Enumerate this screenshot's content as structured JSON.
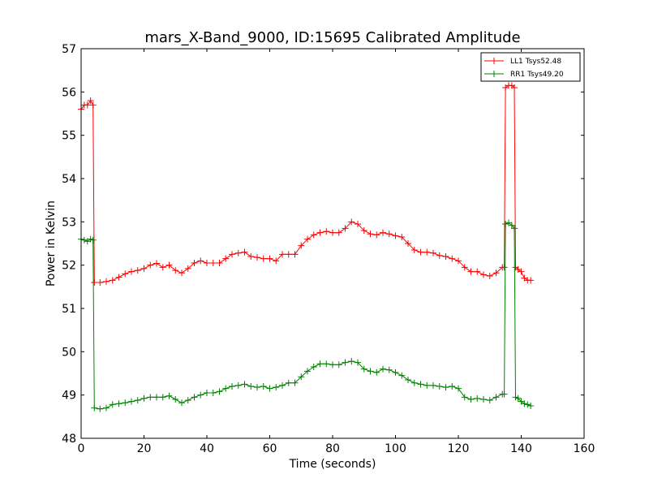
{
  "chart_data": {
    "type": "line",
    "title": "mars_X-Band_9000, ID:15695 Calibrated Amplitude",
    "xlabel": "Time (seconds)",
    "ylabel": "Power in Kelvin",
    "xlim": [
      0,
      160
    ],
    "ylim": [
      48,
      57
    ],
    "xticks": [
      0,
      20,
      40,
      60,
      80,
      100,
      120,
      140,
      160
    ],
    "yticks": [
      48,
      49,
      50,
      51,
      52,
      53,
      54,
      55,
      56,
      57
    ],
    "grid": false,
    "legend_position": "top-right",
    "marker": "plus",
    "series": [
      {
        "name": "LL1 Tsys52.48",
        "color": "#ff0000",
        "points": [
          [
            0.0,
            55.6
          ],
          [
            1.0,
            55.7
          ],
          [
            2.0,
            55.7
          ],
          [
            3.0,
            55.8
          ],
          [
            3.8,
            55.7
          ],
          [
            4.2,
            51.6
          ],
          [
            6,
            51.6
          ],
          [
            8,
            51.62
          ],
          [
            10,
            51.65
          ],
          [
            12,
            51.72
          ],
          [
            14,
            51.8
          ],
          [
            16,
            51.85
          ],
          [
            18,
            51.88
          ],
          [
            20,
            51.92
          ],
          [
            22,
            52.0
          ],
          [
            24,
            52.04
          ],
          [
            26,
            51.95
          ],
          [
            28,
            52.0
          ],
          [
            30,
            51.88
          ],
          [
            32,
            51.82
          ],
          [
            34,
            51.92
          ],
          [
            36,
            52.05
          ],
          [
            38,
            52.1
          ],
          [
            40,
            52.05
          ],
          [
            42,
            52.05
          ],
          [
            44,
            52.05
          ],
          [
            46,
            52.15
          ],
          [
            48,
            52.25
          ],
          [
            50,
            52.28
          ],
          [
            52,
            52.3
          ],
          [
            54,
            52.2
          ],
          [
            56,
            52.18
          ],
          [
            58,
            52.15
          ],
          [
            60,
            52.15
          ],
          [
            62,
            52.1
          ],
          [
            64,
            52.25
          ],
          [
            66,
            52.25
          ],
          [
            68,
            52.25
          ],
          [
            70,
            52.45
          ],
          [
            72,
            52.6
          ],
          [
            74,
            52.7
          ],
          [
            76,
            52.75
          ],
          [
            78,
            52.78
          ],
          [
            80,
            52.75
          ],
          [
            82,
            52.75
          ],
          [
            84,
            52.85
          ],
          [
            86,
            53.0
          ],
          [
            88,
            52.95
          ],
          [
            90,
            52.8
          ],
          [
            92,
            52.72
          ],
          [
            94,
            52.7
          ],
          [
            96,
            52.75
          ],
          [
            98,
            52.72
          ],
          [
            100,
            52.68
          ],
          [
            102,
            52.65
          ],
          [
            104,
            52.5
          ],
          [
            106,
            52.35
          ],
          [
            108,
            52.3
          ],
          [
            110,
            52.3
          ],
          [
            112,
            52.28
          ],
          [
            114,
            52.22
          ],
          [
            116,
            52.2
          ],
          [
            118,
            52.15
          ],
          [
            120,
            52.1
          ],
          [
            122,
            51.95
          ],
          [
            124,
            51.85
          ],
          [
            126,
            51.85
          ],
          [
            128,
            51.78
          ],
          [
            130,
            51.75
          ],
          [
            132,
            51.82
          ],
          [
            134,
            51.95
          ],
          [
            134.6,
            51.95
          ],
          [
            135.0,
            56.1
          ],
          [
            136,
            56.15
          ],
          [
            137,
            56.15
          ],
          [
            137.8,
            56.1
          ],
          [
            138.2,
            51.95
          ],
          [
            139,
            51.9
          ],
          [
            140,
            51.85
          ],
          [
            141,
            51.7
          ],
          [
            142,
            51.65
          ],
          [
            143,
            51.65
          ]
        ]
      },
      {
        "name": "RR1 Tsys49.20",
        "color": "#008000",
        "points": [
          [
            0.0,
            52.6
          ],
          [
            1.0,
            52.58
          ],
          [
            2.0,
            52.55
          ],
          [
            3.0,
            52.6
          ],
          [
            3.8,
            52.58
          ],
          [
            4.2,
            48.7
          ],
          [
            6,
            48.68
          ],
          [
            8,
            48.7
          ],
          [
            10,
            48.78
          ],
          [
            12,
            48.8
          ],
          [
            14,
            48.82
          ],
          [
            16,
            48.85
          ],
          [
            18,
            48.88
          ],
          [
            20,
            48.92
          ],
          [
            22,
            48.95
          ],
          [
            24,
            48.95
          ],
          [
            26,
            48.95
          ],
          [
            28,
            48.98
          ],
          [
            30,
            48.9
          ],
          [
            32,
            48.82
          ],
          [
            34,
            48.88
          ],
          [
            36,
            48.95
          ],
          [
            38,
            49.0
          ],
          [
            40,
            49.05
          ],
          [
            42,
            49.05
          ],
          [
            44,
            49.08
          ],
          [
            46,
            49.15
          ],
          [
            48,
            49.2
          ],
          [
            50,
            49.22
          ],
          [
            52,
            49.25
          ],
          [
            54,
            49.2
          ],
          [
            56,
            49.18
          ],
          [
            58,
            49.2
          ],
          [
            60,
            49.15
          ],
          [
            62,
            49.18
          ],
          [
            64,
            49.22
          ],
          [
            66,
            49.28
          ],
          [
            68,
            49.28
          ],
          [
            70,
            49.42
          ],
          [
            72,
            49.55
          ],
          [
            74,
            49.65
          ],
          [
            76,
            49.72
          ],
          [
            78,
            49.72
          ],
          [
            80,
            49.7
          ],
          [
            82,
            49.7
          ],
          [
            84,
            49.75
          ],
          [
            86,
            49.78
          ],
          [
            88,
            49.75
          ],
          [
            90,
            49.6
          ],
          [
            92,
            49.55
          ],
          [
            94,
            49.52
          ],
          [
            96,
            49.6
          ],
          [
            98,
            49.58
          ],
          [
            100,
            49.52
          ],
          [
            102,
            49.45
          ],
          [
            104,
            49.35
          ],
          [
            106,
            49.28
          ],
          [
            108,
            49.25
          ],
          [
            110,
            49.22
          ],
          [
            112,
            49.22
          ],
          [
            114,
            49.2
          ],
          [
            116,
            49.18
          ],
          [
            118,
            49.2
          ],
          [
            120,
            49.15
          ],
          [
            122,
            48.95
          ],
          [
            124,
            48.9
          ],
          [
            126,
            48.92
          ],
          [
            128,
            48.9
          ],
          [
            130,
            48.88
          ],
          [
            132,
            48.95
          ],
          [
            134,
            49.02
          ],
          [
            134.6,
            49.02
          ],
          [
            135.0,
            52.95
          ],
          [
            136,
            52.98
          ],
          [
            137,
            52.92
          ],
          [
            137.8,
            52.85
          ],
          [
            138.2,
            48.95
          ],
          [
            139,
            48.92
          ],
          [
            140,
            48.85
          ],
          [
            141,
            48.8
          ],
          [
            142,
            48.78
          ],
          [
            143,
            48.75
          ]
        ]
      }
    ]
  }
}
